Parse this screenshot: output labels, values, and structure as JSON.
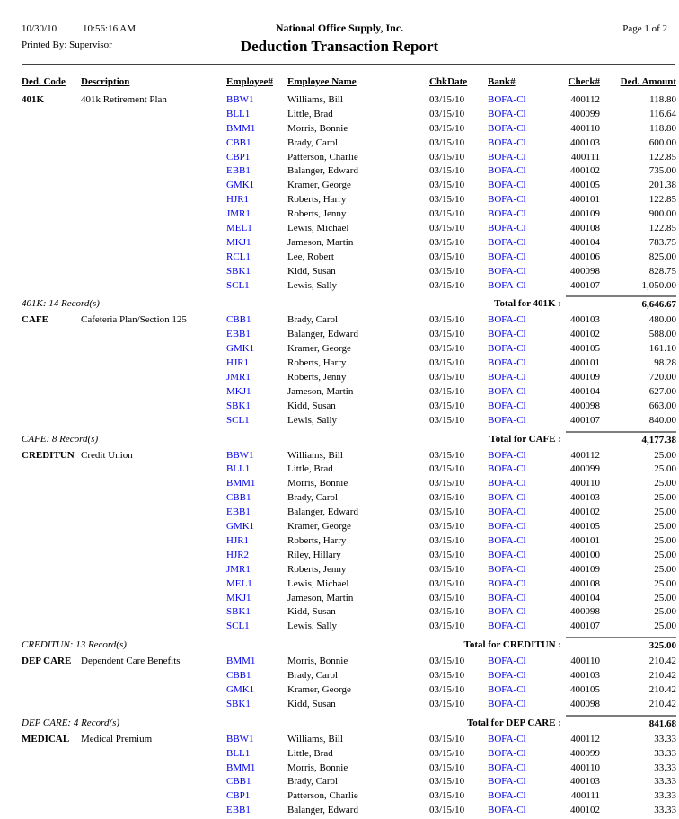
{
  "colors": {
    "accent_blue": "#0000EE",
    "header_rule": "#404040",
    "total_line": "#7d7d7d"
  },
  "report": {
    "header": {
      "date": "10/30/10",
      "time": "10:56:16 AM",
      "printed_by": "Printed By: Supervisor",
      "company": "National Office Supply, Inc.",
      "title": "Deduction Transaction Report",
      "page_label": "Page 1 of 2"
    },
    "columns": [
      "Ded. Code",
      "Description",
      "Employee#",
      "Employee Name",
      "ChkDate",
      "Bank#",
      "Check#",
      "Ded. Amount"
    ],
    "sections": [
      {
        "code": "401K",
        "description": "401k Retirement Plan",
        "rows": [
          [
            "BBW1",
            "Williams, Bill",
            "03/15/10",
            "BOFA-Cl",
            "400112",
            "118.80"
          ],
          [
            "BLL1",
            "Little, Brad",
            "03/15/10",
            "BOFA-Cl",
            "400099",
            "116.64"
          ],
          [
            "BMM1",
            "Morris, Bonnie",
            "03/15/10",
            "BOFA-Cl",
            "400110",
            "118.80"
          ],
          [
            "CBB1",
            "Brady, Carol",
            "03/15/10",
            "BOFA-Cl",
            "400103",
            "600.00"
          ],
          [
            "CBP1",
            "Patterson, Charlie",
            "03/15/10",
            "BOFA-Cl",
            "400111",
            "122.85"
          ],
          [
            "EBB1",
            "Balanger, Edward",
            "03/15/10",
            "BOFA-Cl",
            "400102",
            "735.00"
          ],
          [
            "GMK1",
            "Kramer, George",
            "03/15/10",
            "BOFA-Cl",
            "400105",
            "201.38"
          ],
          [
            "HJR1",
            "Roberts, Harry",
            "03/15/10",
            "BOFA-Cl",
            "400101",
            "122.85"
          ],
          [
            "JMR1",
            "Roberts, Jenny",
            "03/15/10",
            "BOFA-Cl",
            "400109",
            "900.00"
          ],
          [
            "MEL1",
            "Lewis, Michael",
            "03/15/10",
            "BOFA-Cl",
            "400108",
            "122.85"
          ],
          [
            "MKJ1",
            "Jameson, Martin",
            "03/15/10",
            "BOFA-Cl",
            "400104",
            "783.75"
          ],
          [
            "RCL1",
            "Lee, Robert",
            "03/15/10",
            "BOFA-Cl",
            "400106",
            "825.00"
          ],
          [
            "SBK1",
            "Kidd, Susan",
            "03/15/10",
            "BOFA-Cl",
            "400098",
            "828.75"
          ],
          [
            "SCL1",
            "Lewis, Sally",
            "03/15/10",
            "BOFA-Cl",
            "400107",
            "1,050.00"
          ]
        ],
        "footer": {
          "records": "401K: 14 Record(s)",
          "total_label": "Total for 401K :",
          "total": "6,646.67"
        }
      },
      {
        "code": "CAFE",
        "description": "Cafeteria Plan/Section 125",
        "rows": [
          [
            "CBB1",
            "Brady, Carol",
            "03/15/10",
            "BOFA-Cl",
            "400103",
            "480.00"
          ],
          [
            "EBB1",
            "Balanger, Edward",
            "03/15/10",
            "BOFA-Cl",
            "400102",
            "588.00"
          ],
          [
            "GMK1",
            "Kramer, George",
            "03/15/10",
            "BOFA-Cl",
            "400105",
            "161.10"
          ],
          [
            "HJR1",
            "Roberts, Harry",
            "03/15/10",
            "BOFA-Cl",
            "400101",
            "98.28"
          ],
          [
            "JMR1",
            "Roberts, Jenny",
            "03/15/10",
            "BOFA-Cl",
            "400109",
            "720.00"
          ],
          [
            "MKJ1",
            "Jameson, Martin",
            "03/15/10",
            "BOFA-Cl",
            "400104",
            "627.00"
          ],
          [
            "SBK1",
            "Kidd, Susan",
            "03/15/10",
            "BOFA-Cl",
            "400098",
            "663.00"
          ],
          [
            "SCL1",
            "Lewis, Sally",
            "03/15/10",
            "BOFA-Cl",
            "400107",
            "840.00"
          ]
        ],
        "footer": {
          "records": "CAFE: 8 Record(s)",
          "total_label": "Total for CAFE :",
          "total": "4,177.38"
        }
      },
      {
        "code": "CREDITUN",
        "description": "Credit Union",
        "rows": [
          [
            "BBW1",
            "Williams, Bill",
            "03/15/10",
            "BOFA-Cl",
            "400112",
            "25.00"
          ],
          [
            "BLL1",
            "Little, Brad",
            "03/15/10",
            "BOFA-Cl",
            "400099",
            "25.00"
          ],
          [
            "BMM1",
            "Morris, Bonnie",
            "03/15/10",
            "BOFA-Cl",
            "400110",
            "25.00"
          ],
          [
            "CBB1",
            "Brady, Carol",
            "03/15/10",
            "BOFA-Cl",
            "400103",
            "25.00"
          ],
          [
            "EBB1",
            "Balanger, Edward",
            "03/15/10",
            "BOFA-Cl",
            "400102",
            "25.00"
          ],
          [
            "GMK1",
            "Kramer, George",
            "03/15/10",
            "BOFA-Cl",
            "400105",
            "25.00"
          ],
          [
            "HJR1",
            "Roberts, Harry",
            "03/15/10",
            "BOFA-Cl",
            "400101",
            "25.00"
          ],
          [
            "HJR2",
            "Riley, Hillary",
            "03/15/10",
            "BOFA-Cl",
            "400100",
            "25.00"
          ],
          [
            "JMR1",
            "Roberts, Jenny",
            "03/15/10",
            "BOFA-Cl",
            "400109",
            "25.00"
          ],
          [
            "MEL1",
            "Lewis, Michael",
            "03/15/10",
            "BOFA-Cl",
            "400108",
            "25.00"
          ],
          [
            "MKJ1",
            "Jameson, Martin",
            "03/15/10",
            "BOFA-Cl",
            "400104",
            "25.00"
          ],
          [
            "SBK1",
            "Kidd, Susan",
            "03/15/10",
            "BOFA-Cl",
            "400098",
            "25.00"
          ],
          [
            "SCL1",
            "Lewis, Sally",
            "03/15/10",
            "BOFA-Cl",
            "400107",
            "25.00"
          ]
        ],
        "footer": {
          "records": "CREDITUN: 13 Record(s)",
          "total_label": "Total for CREDITUN :",
          "total": "325.00"
        }
      },
      {
        "code": "DEP CARE",
        "description": "Dependent Care Benefits",
        "rows": [
          [
            "BMM1",
            "Morris, Bonnie",
            "03/15/10",
            "BOFA-Cl",
            "400110",
            "210.42"
          ],
          [
            "CBB1",
            "Brady, Carol",
            "03/15/10",
            "BOFA-Cl",
            "400103",
            "210.42"
          ],
          [
            "GMK1",
            "Kramer, George",
            "03/15/10",
            "BOFA-Cl",
            "400105",
            "210.42"
          ],
          [
            "SBK1",
            "Kidd, Susan",
            "03/15/10",
            "BOFA-Cl",
            "400098",
            "210.42"
          ]
        ],
        "footer": {
          "records": "DEP CARE: 4 Record(s)",
          "total_label": "Total for DEP CARE :",
          "total": "841.68"
        }
      },
      {
        "code": "MEDICAL",
        "description": "Medical Premium",
        "rows": [
          [
            "BBW1",
            "Williams, Bill",
            "03/15/10",
            "BOFA-Cl",
            "400112",
            "33.33"
          ],
          [
            "BLL1",
            "Little, Brad",
            "03/15/10",
            "BOFA-Cl",
            "400099",
            "33.33"
          ],
          [
            "BMM1",
            "Morris, Bonnie",
            "03/15/10",
            "BOFA-Cl",
            "400110",
            "33.33"
          ],
          [
            "CBB1",
            "Brady, Carol",
            "03/15/10",
            "BOFA-Cl",
            "400103",
            "33.33"
          ],
          [
            "CBP1",
            "Patterson, Charlie",
            "03/15/10",
            "BOFA-Cl",
            "400111",
            "33.33"
          ],
          [
            "EBB1",
            "Balanger, Edward",
            "03/15/10",
            "BOFA-Cl",
            "400102",
            "33.33"
          ]
        ],
        "footer": null
      }
    ]
  }
}
